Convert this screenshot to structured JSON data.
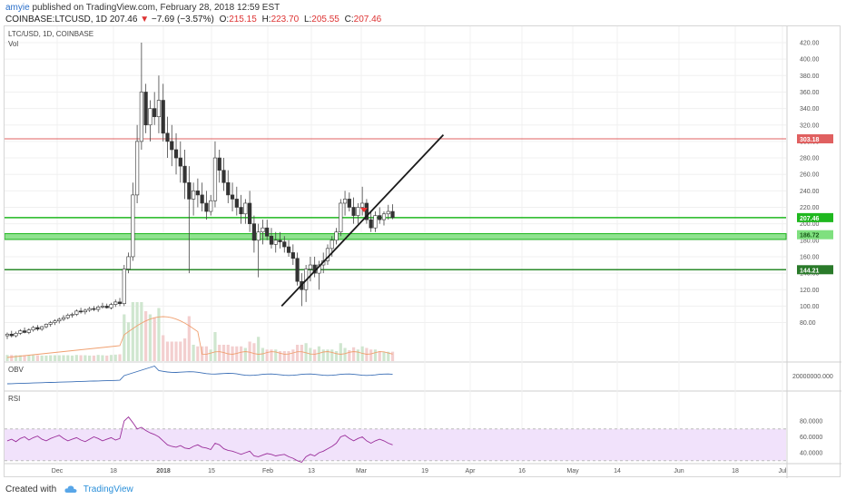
{
  "header": {
    "user": "amyie",
    "published_text": " published on TradingView.com, February 28, 2018 12:59 EST",
    "symbol_line": "COINBASE:LTCUSD, 1D",
    "last": "207.46",
    "change": "−7.69 (−3.57%)",
    "open_label": "O:",
    "open": "215.15",
    "high_label": "H:",
    "high": "223.70",
    "low_label": "L:",
    "low": "205.55",
    "close_label": "C:",
    "close": "207.46"
  },
  "panes": {
    "price_title": "LTC/USD, 1D, COINBASE",
    "vol_label": "Vol",
    "obv_label": "OBV",
    "rsi_label": "RSI"
  },
  "footer": {
    "created_with": "Created with",
    "brand": "TradingView"
  },
  "colors": {
    "up": "#3a3a3a",
    "down": "#3a3a3a",
    "support": "#1fb81f",
    "resistance": "#e06060",
    "trendline": "#1a1a1a",
    "rsi_band": "#f1e2fb",
    "rsi_line": "#9b2f9b",
    "obv_line": "#3b6fb6",
    "vol_ma": "#f0a070"
  },
  "chart_data": {
    "type": "candlestick",
    "x_ticks": [
      "Dec",
      "18",
      "2018",
      "15",
      "Feb",
      "13",
      "Mar",
      "19",
      "Apr",
      "16",
      "May",
      "14",
      "Jun",
      "18",
      "Jul"
    ],
    "y_ticks": [
      "420.00",
      "400.00",
      "380.00",
      "360.00",
      "340.00",
      "320.00",
      "300.00",
      "280.00",
      "260.00",
      "240.00",
      "220.00",
      "200.00",
      "180.00",
      "160.00",
      "140.00",
      "120.00",
      "100.00",
      "80.00"
    ],
    "ylim": [
      70,
      430
    ],
    "price_labels": [
      {
        "value": 303.18,
        "text": "303.18",
        "color": "#e06060"
      },
      {
        "value": 207.46,
        "text": "207.46",
        "color": "#1fb81f"
      },
      {
        "value": 186.72,
        "text": "186.72",
        "color": "#7fe07f"
      },
      {
        "value": 144.21,
        "text": "144.21",
        "color": "#2a7a2a"
      }
    ],
    "horizontal_lines": [
      {
        "value": 303.18,
        "type": "resistance"
      },
      {
        "value": 207.46,
        "type": "support"
      },
      {
        "value": 144.21,
        "type": "support"
      }
    ],
    "support_zone": [
      181,
      188
    ],
    "trendline": [
      {
        "date_index": 99,
        "price": 100
      },
      {
        "date_index": 126,
        "price": 200
      },
      {
        "date_index": 159,
        "price": 308
      }
    ],
    "candles": [
      [
        64,
        68,
        60,
        66
      ],
      [
        66,
        70,
        62,
        64
      ],
      [
        64,
        69,
        62,
        67
      ],
      [
        67,
        72,
        65,
        70
      ],
      [
        70,
        74,
        67,
        68
      ],
      [
        68,
        73,
        66,
        71
      ],
      [
        71,
        76,
        69,
        74
      ],
      [
        74,
        77,
        70,
        72
      ],
      [
        72,
        76,
        70,
        75
      ],
      [
        75,
        79,
        73,
        78
      ],
      [
        78,
        82,
        75,
        80
      ],
      [
        80,
        84,
        77,
        82
      ],
      [
        82,
        86,
        79,
        84
      ],
      [
        84,
        89,
        82,
        86
      ],
      [
        86,
        91,
        84,
        89
      ],
      [
        89,
        92,
        86,
        90
      ],
      [
        90,
        96,
        88,
        94
      ],
      [
        94,
        98,
        91,
        93
      ],
      [
        93,
        97,
        90,
        95
      ],
      [
        95,
        99,
        93,
        97
      ],
      [
        97,
        100,
        94,
        96
      ],
      [
        96,
        101,
        93,
        99
      ],
      [
        99,
        104,
        97,
        100
      ],
      [
        100,
        103,
        97,
        98
      ],
      [
        98,
        104,
        96,
        102
      ],
      [
        102,
        108,
        99,
        105
      ],
      [
        105,
        110,
        100,
        103
      ],
      [
        103,
        150,
        100,
        145
      ],
      [
        145,
        165,
        140,
        160
      ],
      [
        160,
        250,
        155,
        235
      ],
      [
        235,
        320,
        225,
        300
      ],
      [
        300,
        420,
        290,
        360
      ],
      [
        360,
        370,
        310,
        320
      ],
      [
        320,
        350,
        300,
        340
      ],
      [
        340,
        360,
        320,
        330
      ],
      [
        330,
        380,
        310,
        350
      ],
      [
        350,
        370,
        300,
        310
      ],
      [
        310,
        330,
        280,
        300
      ],
      [
        300,
        320,
        270,
        290
      ],
      [
        290,
        310,
        260,
        280
      ],
      [
        280,
        300,
        250,
        270
      ],
      [
        270,
        290,
        230,
        250
      ],
      [
        250,
        270,
        140,
        230
      ],
      [
        230,
        250,
        210,
        240
      ],
      [
        240,
        255,
        220,
        235
      ],
      [
        235,
        250,
        215,
        225
      ],
      [
        225,
        240,
        205,
        215
      ],
      [
        215,
        235,
        210,
        228
      ],
      [
        228,
        300,
        220,
        280
      ],
      [
        280,
        290,
        250,
        265
      ],
      [
        265,
        280,
        240,
        250
      ],
      [
        250,
        265,
        225,
        235
      ],
      [
        235,
        250,
        215,
        230
      ],
      [
        230,
        245,
        210,
        220
      ],
      [
        220,
        235,
        200,
        212
      ],
      [
        212,
        230,
        200,
        225
      ],
      [
        225,
        240,
        190,
        200
      ],
      [
        200,
        210,
        165,
        180
      ],
      [
        180,
        200,
        135,
        190
      ],
      [
        190,
        205,
        175,
        195
      ],
      [
        195,
        205,
        180,
        185
      ],
      [
        185,
        195,
        170,
        175
      ],
      [
        175,
        190,
        165,
        180
      ],
      [
        180,
        190,
        170,
        178
      ],
      [
        178,
        185,
        165,
        172
      ],
      [
        172,
        180,
        160,
        165
      ],
      [
        165,
        175,
        150,
        158
      ],
      [
        158,
        165,
        125,
        130
      ],
      [
        130,
        140,
        100,
        120
      ],
      [
        120,
        150,
        105,
        145
      ],
      [
        145,
        160,
        130,
        150
      ],
      [
        150,
        160,
        135,
        140
      ],
      [
        140,
        155,
        120,
        150
      ],
      [
        150,
        165,
        140,
        155
      ],
      [
        155,
        175,
        150,
        170
      ],
      [
        170,
        185,
        160,
        180
      ],
      [
        180,
        195,
        175,
        190
      ],
      [
        190,
        230,
        185,
        225
      ],
      [
        225,
        240,
        210,
        230
      ],
      [
        230,
        238,
        215,
        220
      ],
      [
        220,
        232,
        200,
        210
      ],
      [
        210,
        225,
        200,
        220
      ],
      [
        220,
        245,
        210,
        225
      ],
      [
        225,
        230,
        200,
        205
      ],
      [
        205,
        215,
        190,
        195
      ],
      [
        195,
        215,
        190,
        210
      ],
      [
        210,
        220,
        200,
        205
      ],
      [
        205,
        215,
        198,
        212
      ],
      [
        212,
        223,
        205,
        215
      ],
      [
        215,
        223.7,
        205.55,
        207.46
      ]
    ]
  }
}
